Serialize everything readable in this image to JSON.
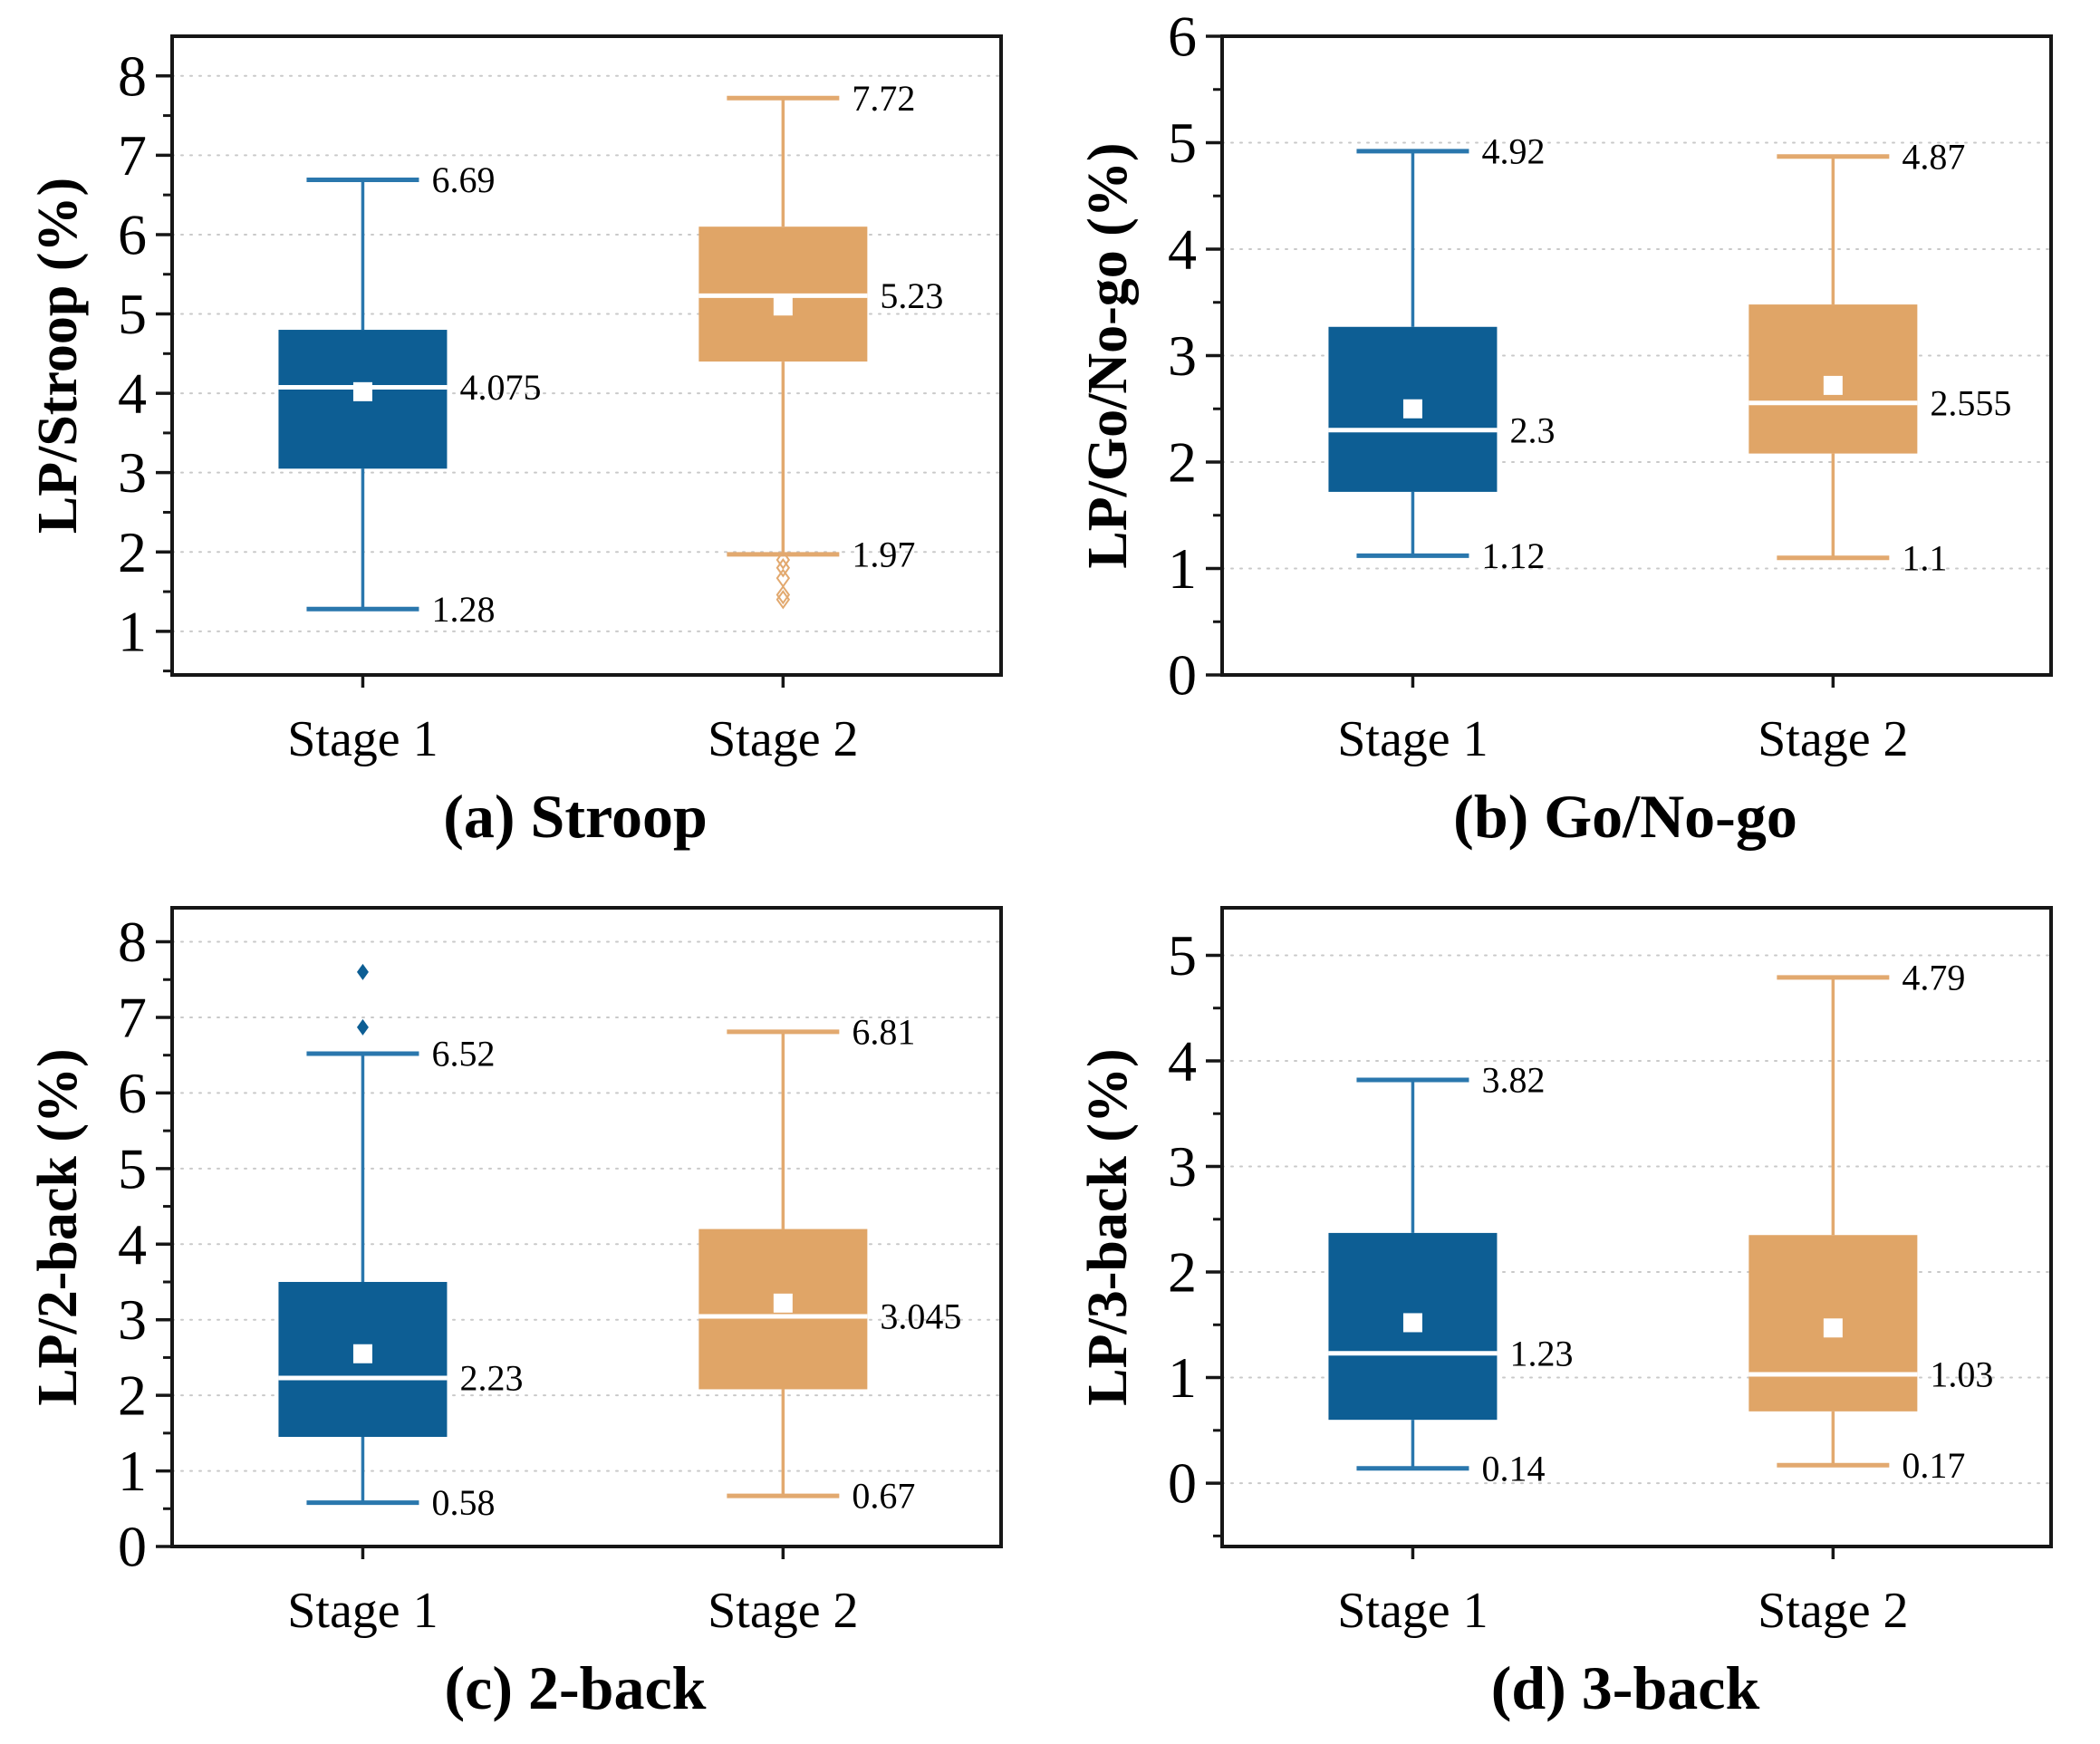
{
  "page": {
    "background": "#ffffff"
  },
  "colors": {
    "stage1_fill": "#0d5e94",
    "stage1_stroke": "#2a77ad",
    "stage2_fill": "#e0a567",
    "stage2_stroke": "#e2a96f",
    "median_line": "#ffffff",
    "mean_marker": "#ffffff",
    "grid": "#c9c9c9",
    "frame": "#161616",
    "text": "#000000"
  },
  "chart_data": [
    {
      "type": "box",
      "panel_id": "a",
      "caption": "(a) Stroop",
      "ylabel": "LP/Stroop (%)",
      "ylim": [
        0.45,
        8.5
      ],
      "yticks": [
        1,
        2,
        3,
        4,
        5,
        6,
        7,
        8
      ],
      "minor_step": 0.5,
      "grid": true,
      "legend_position": "none",
      "categories": [
        "Stage 1",
        "Stage 2"
      ],
      "series": [
        {
          "category": "Stage 1",
          "color_key": "stage1",
          "q1": 3.05,
          "median": 4.075,
          "q3": 4.8,
          "mean": 4.02,
          "whisker_low": 1.28,
          "whisker_high": 6.69,
          "labels": {
            "high": "6.69",
            "median": "4.075",
            "low": "1.28"
          },
          "outliers": [],
          "outlier_style": "none"
        },
        {
          "category": "Stage 2",
          "color_key": "stage2",
          "q1": 4.4,
          "median": 5.23,
          "q3": 6.1,
          "mean": 5.1,
          "whisker_low": 1.97,
          "whisker_high": 7.72,
          "labels": {
            "high": "7.72",
            "median": "5.23",
            "low": "1.97"
          },
          "outliers": [
            1.9,
            1.8,
            1.67,
            1.46,
            1.4
          ],
          "outlier_style": "open-diamond"
        }
      ]
    },
    {
      "type": "box",
      "panel_id": "b",
      "caption": "(b) Go/No-go",
      "ylabel": "LP/Go/No-go (%)",
      "ylim": [
        0,
        6
      ],
      "yticks": [
        0,
        1,
        2,
        3,
        4,
        5,
        6
      ],
      "minor_step": 0.5,
      "grid": true,
      "legend_position": "none",
      "categories": [
        "Stage 1",
        "Stage 2"
      ],
      "series": [
        {
          "category": "Stage 1",
          "color_key": "stage1",
          "q1": 1.72,
          "median": 2.3,
          "q3": 3.27,
          "mean": 2.5,
          "whisker_low": 1.12,
          "whisker_high": 4.92,
          "labels": {
            "high": "4.92",
            "median": "2.3",
            "low": "1.12"
          },
          "outliers": [],
          "outlier_style": "none"
        },
        {
          "category": "Stage 2",
          "color_key": "stage2",
          "q1": 2.08,
          "median": 2.555,
          "q3": 3.48,
          "mean": 2.72,
          "whisker_low": 1.1,
          "whisker_high": 4.87,
          "labels": {
            "high": "4.87",
            "median": "2.555",
            "low": "1.1"
          },
          "outliers": [],
          "outlier_style": "none"
        }
      ]
    },
    {
      "type": "box",
      "panel_id": "c",
      "caption": "(c) 2-back",
      "ylabel": "LP/2-back (%)",
      "ylim": [
        0,
        8.45
      ],
      "yticks": [
        0,
        1,
        2,
        3,
        4,
        5,
        6,
        7,
        8
      ],
      "minor_step": 0.5,
      "grid": true,
      "legend_position": "none",
      "categories": [
        "Stage 1",
        "Stage 2"
      ],
      "series": [
        {
          "category": "Stage 1",
          "color_key": "stage1",
          "q1": 1.45,
          "median": 2.23,
          "q3": 3.5,
          "mean": 2.55,
          "whisker_low": 0.58,
          "whisker_high": 6.52,
          "labels": {
            "high": "6.52",
            "median": "2.23",
            "low": "0.58"
          },
          "outliers": [
            7.6,
            6.87
          ],
          "outlier_style": "filled-diamond"
        },
        {
          "category": "Stage 2",
          "color_key": "stage2",
          "q1": 2.08,
          "median": 3.045,
          "q3": 4.2,
          "mean": 3.22,
          "whisker_low": 0.67,
          "whisker_high": 6.81,
          "labels": {
            "high": "6.81",
            "median": "3.045",
            "low": "0.67"
          },
          "outliers": [],
          "outlier_style": "none"
        }
      ]
    },
    {
      "type": "box",
      "panel_id": "d",
      "caption": "(d) 3-back",
      "ylabel": "LP/3-back (%)",
      "ylim": [
        -0.6,
        5.45
      ],
      "yticks": [
        0,
        1,
        2,
        3,
        4,
        5
      ],
      "minor_step": 0.5,
      "grid": true,
      "legend_position": "none",
      "categories": [
        "Stage 1",
        "Stage 2"
      ],
      "series": [
        {
          "category": "Stage 1",
          "color_key": "stage1",
          "q1": 0.6,
          "median": 1.23,
          "q3": 2.37,
          "mean": 1.52,
          "whisker_low": 0.14,
          "whisker_high": 3.82,
          "labels": {
            "high": "3.82",
            "median": "1.23",
            "low": "0.14"
          },
          "outliers": [],
          "outlier_style": "none"
        },
        {
          "category": "Stage 2",
          "color_key": "stage2",
          "q1": 0.68,
          "median": 1.03,
          "q3": 2.35,
          "mean": 1.47,
          "whisker_low": 0.17,
          "whisker_high": 4.79,
          "labels": {
            "high": "4.79",
            "median": "1.03",
            "low": "0.17"
          },
          "outliers": [],
          "outlier_style": "none"
        }
      ]
    }
  ]
}
